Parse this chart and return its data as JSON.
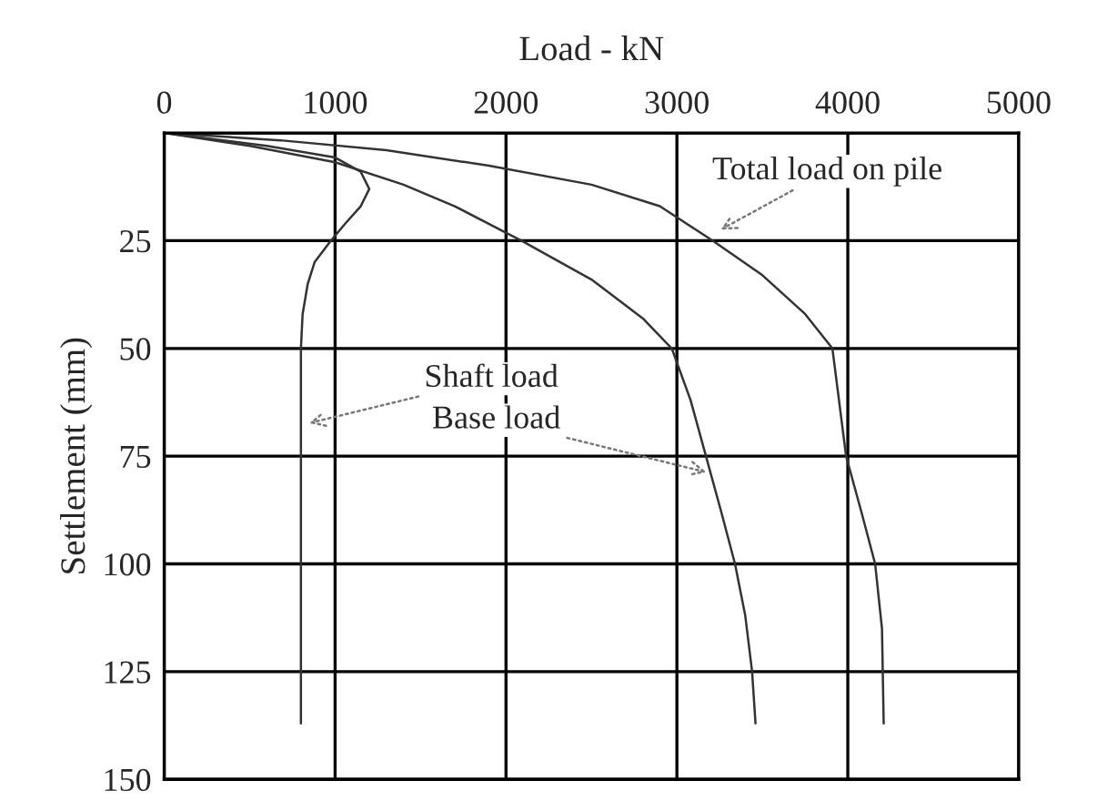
{
  "chart_data": {
    "type": "line",
    "xlabel": "Load - kN",
    "ylabel": "Settlement (mm)",
    "xlim": [
      0,
      5000
    ],
    "xticks": [
      0,
      1000,
      2000,
      3000,
      4000,
      5000
    ],
    "ylim": [
      150,
      0
    ],
    "yticks": [
      {
        "value": 0,
        "label": null
      },
      25,
      50,
      75,
      100,
      125,
      150
    ],
    "grid": true,
    "line_style": "solid",
    "marker": "none",
    "series": [
      {
        "color": "#333333",
        "x": [
          0,
          680,
          1300,
          1900,
          2500,
          2900,
          3210,
          3500,
          3750,
          3910,
          3990,
          4080,
          4160,
          4200,
          4210
        ],
        "values": [
          0,
          1.7,
          4,
          7.6,
          12,
          17,
          25,
          33,
          42,
          50,
          75,
          88,
          100,
          115,
          137
        ]
      },
      {
        "color": "#333333",
        "x": [
          0,
          500,
          1000,
          1400,
          1700,
          2090,
          2500,
          2800,
          2970,
          3080,
          3170,
          3260,
          3340,
          3400,
          3440,
          3460
        ],
        "values": [
          0,
          3,
          6.8,
          12,
          17,
          25,
          34,
          43,
          50,
          62,
          75,
          88,
          100,
          112,
          125,
          137
        ]
      },
      {
        "color": "#333333",
        "x": [
          0,
          600,
          1000,
          1150,
          1200,
          1150,
          1060,
          975,
          880,
          840,
          810,
          800,
          800,
          800
        ],
        "values": [
          0,
          3,
          5.7,
          9,
          13,
          17,
          21,
          25,
          30,
          35,
          42,
          50,
          75,
          137
        ]
      }
    ],
    "annotations": [
      {
        "text": "Total load on pile",
        "x": 3230,
        "y": 23
      },
      {
        "text": "Shaft load",
        "x": 820,
        "y": 67.6
      },
      {
        "text": "Base load",
        "x": 3200,
        "y": 79
      }
    ]
  }
}
